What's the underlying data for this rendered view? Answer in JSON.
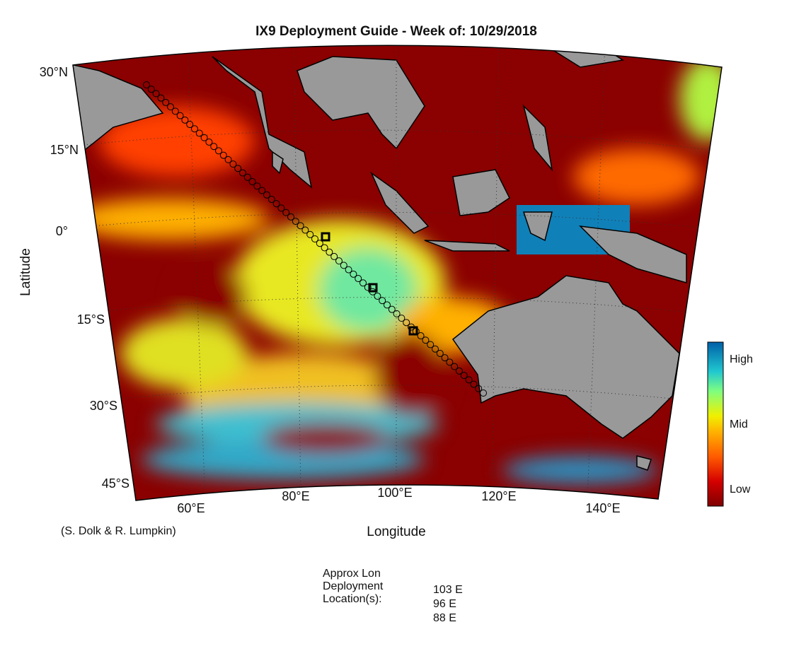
{
  "title": "IX9 Deployment Guide - Week of: 10/29/2018",
  "axes": {
    "x_label": "Longitude",
    "y_label": "Latitude",
    "lat_ticks": [
      "30°N",
      "15°N",
      "0°",
      "15°S",
      "30°S",
      "45°S"
    ],
    "lon_ticks": [
      "60°E",
      "80°E",
      "100°E",
      "120°E",
      "140°E"
    ]
  },
  "colorbar": {
    "labels": [
      "High",
      "Mid",
      "Low"
    ]
  },
  "credit": "(S. Dolk & R. Lumpkin)",
  "deployment": {
    "heading_lines": [
      "Approx Lon",
      "Deployment",
      "Location(s):"
    ],
    "locations": [
      "103 E",
      "96 E",
      "88 E"
    ]
  }
}
